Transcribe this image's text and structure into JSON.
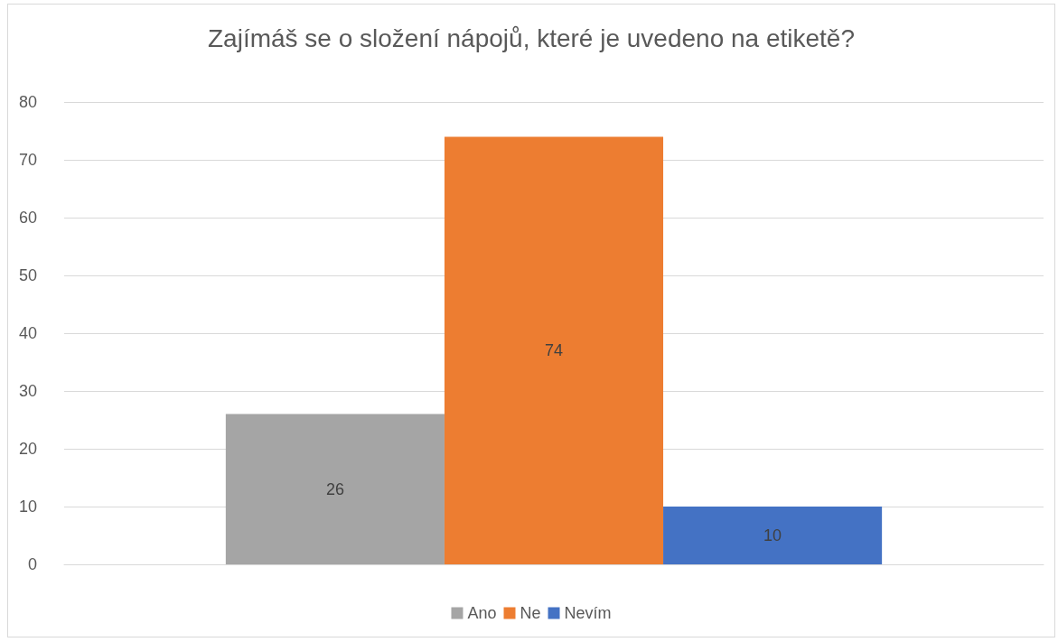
{
  "chart_data": {
    "type": "bar",
    "title": "Zajímáš se o složení nápojů, které je uvedeno na etiketě?",
    "categories": [
      null
    ],
    "series": [
      {
        "name": "Ano",
        "color": "#a5a5a5",
        "values": [
          26
        ]
      },
      {
        "name": "Ne",
        "color": "#ed7d31",
        "values": [
          74
        ]
      },
      {
        "name": "Nevím",
        "color": "#4472c4",
        "values": [
          10
        ]
      }
    ],
    "ylim": [
      0,
      80
    ],
    "yticks": [
      0,
      10,
      20,
      30,
      40,
      50,
      60,
      70,
      80
    ],
    "grid": "y",
    "legend": "bottom",
    "data_labels": true
  }
}
